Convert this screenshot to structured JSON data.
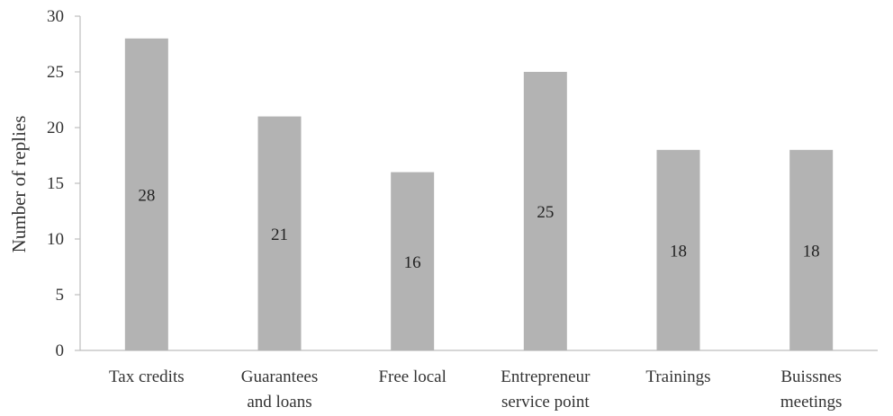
{
  "chart_data": {
    "type": "bar",
    "title": "",
    "xlabel": "",
    "ylabel": "Number of replies",
    "ylim": [
      0,
      30
    ],
    "yticks": [
      0,
      5,
      10,
      15,
      20,
      25,
      30
    ],
    "categories": [
      [
        "Tax credits"
      ],
      [
        "Guarantees",
        "and loans"
      ],
      [
        "Free local"
      ],
      [
        "Entrepreneur",
        "service point"
      ],
      [
        "Trainings"
      ],
      [
        "Buissnes",
        "meetings"
      ]
    ],
    "values": [
      28,
      21,
      16,
      25,
      18,
      18
    ],
    "data_labels": [
      "28",
      "21",
      "16",
      "25",
      "18",
      "18"
    ],
    "grid": false,
    "legend": "none",
    "colors": {
      "bar": "#b3b3b3",
      "axis": "#bdbdbd",
      "text": "#333333"
    }
  }
}
